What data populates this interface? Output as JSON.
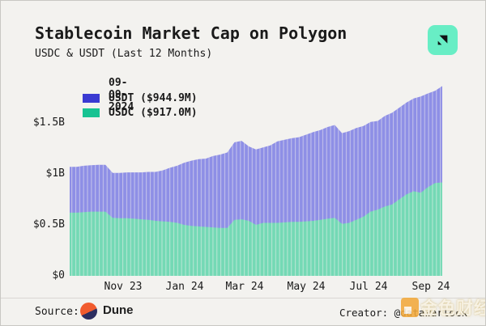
{
  "chart_data": {
    "type": "area",
    "stacked": true,
    "title": "Stablecoin Market Cap on Polygon",
    "subtitle": "USDC & USDT (Last 12 Months)",
    "unit": "USD millions",
    "x_range": [
      "2023-09-09",
      "2024-09-09"
    ],
    "x_sampling": "weekly",
    "ylim": [
      0,
      1550
    ],
    "grid": false,
    "legend_position": "top-left",
    "background": "#f3f2ef",
    "legend": {
      "date": "09-09-2024",
      "items": [
        {
          "name": "USDT",
          "label": "USDT ($944.9M)",
          "swatch_color": "#3a3ad2",
          "fill_color": "#8e8fe6"
        },
        {
          "name": "USDC",
          "label": "USDC ($917.0M)",
          "swatch_color": "#17c392",
          "fill_color": "#74d9b5"
        }
      ]
    },
    "series": [
      {
        "name": "USDT",
        "values": [
          450,
          450,
          455,
          455,
          460,
          460,
          440,
          445,
          450,
          455,
          460,
          470,
          480,
          500,
          530,
          560,
          610,
          640,
          660,
          670,
          700,
          720,
          740,
          760,
          770,
          730,
          740,
          740,
          760,
          800,
          810,
          820,
          830,
          850,
          870,
          880,
          900,
          910,
          890,
          900,
          900,
          890,
          880,
          870,
          890,
          900,
          900,
          900,
          910,
          945,
          920,
          905,
          944.9
        ]
      },
      {
        "name": "USDC",
        "values": [
          620,
          620,
          625,
          630,
          630,
          630,
          570,
          565,
          565,
          560,
          555,
          550,
          540,
          535,
          530,
          520,
          500,
          490,
          485,
          480,
          475,
          470,
          470,
          550,
          555,
          540,
          500,
          520,
          520,
          520,
          525,
          530,
          530,
          535,
          540,
          550,
          560,
          570,
          510,
          520,
          550,
          580,
          630,
          650,
          680,
          700,
          750,
          800,
          830,
          815,
          870,
          910,
          917
        ]
      }
    ],
    "yticks": [
      {
        "label": "$0",
        "value": 0
      },
      {
        "label": "$0.5B",
        "value": 500
      },
      {
        "label": "$1B",
        "value": 1000
      },
      {
        "label": "$1.5B",
        "value": 1500
      }
    ],
    "xticks": [
      {
        "label": "Nov 23",
        "f": 0.1435
      },
      {
        "label": "Jan 24",
        "f": 0.3087
      },
      {
        "label": "Mar 24",
        "f": 0.4696
      },
      {
        "label": "May 24",
        "f": 0.6348
      },
      {
        "label": "Jul 24",
        "f": 0.8022
      },
      {
        "label": "Sep 24",
        "f": 0.9696
      }
    ]
  },
  "footer": {
    "source_label": "Source:",
    "source_name": "Dune",
    "creator": "Creator: @datawarlock"
  },
  "watermark": {
    "text": "金色财经"
  }
}
